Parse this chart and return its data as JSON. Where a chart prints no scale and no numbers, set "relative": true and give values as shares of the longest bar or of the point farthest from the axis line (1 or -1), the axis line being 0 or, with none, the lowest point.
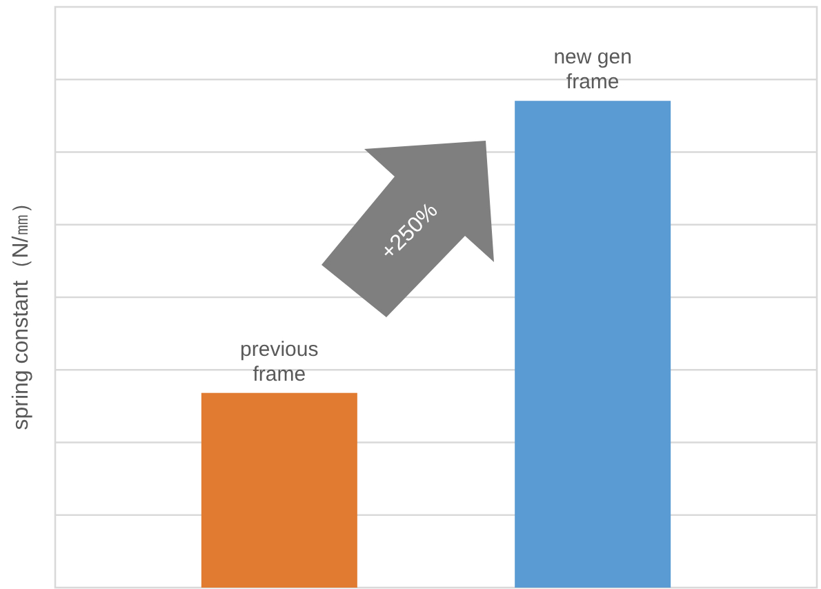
{
  "chart_data": {
    "type": "bar",
    "relative": true,
    "categories": [
      "previous frame",
      "new gen frame"
    ],
    "values": [
      0.4,
      1
    ],
    "colors": [
      "#e07b31",
      "#5b9bd3"
    ],
    "ylabel": "spring constant（N/㎜）",
    "annotations": [
      "+250%"
    ],
    "grid": "y"
  }
}
